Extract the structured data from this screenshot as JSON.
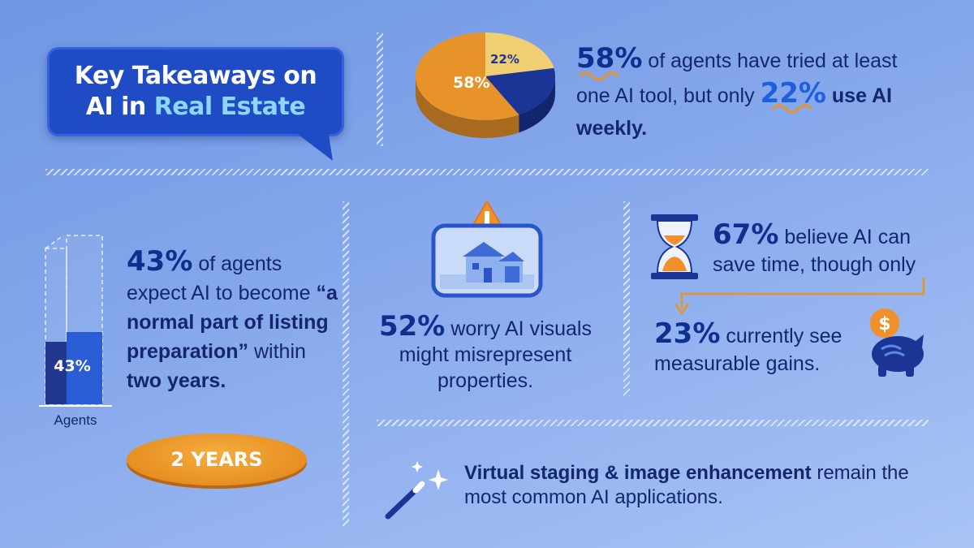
{
  "title": {
    "line1": "Key Takeaways on",
    "line2_prefix": "AI in",
    "line2_accent": "Real Estate"
  },
  "stat_tools": {
    "pct_tried": "58%",
    "text_a": "of agents have tried at least one AI tool, but only",
    "pct_weekly": "22%",
    "text_b": "use AI weekly."
  },
  "pie": {
    "label_large": "58%",
    "label_small": "22%"
  },
  "chart_data": {
    "type": "pie",
    "values": [
      58,
      22,
      20
    ],
    "labels": [
      "58%",
      "22%",
      ""
    ],
    "colors": [
      "#e8932a",
      "#f0cf73",
      "#1b3597"
    ]
  },
  "stat_normal": {
    "pct": "43%",
    "text_a": "of agents expect AI to become",
    "quote": "“a normal part of listing preparation”",
    "text_b": "within",
    "bold_end": "two years."
  },
  "bar": {
    "value_label": "43%",
    "axis_label": "Agents",
    "fill_fraction": 0.43
  },
  "badge": "2 YEARS",
  "stat_visuals": {
    "pct": "52%",
    "text": "worry AI visuals might misrepresent properties."
  },
  "stat_time": {
    "pct_believe": "67%",
    "text_a": "believe AI can save time, though only",
    "pct_gains": "23%",
    "text_b": "currently see measurable gains."
  },
  "stat_staging": {
    "bold": "Virtual staging & image enhancement",
    "text": "remain the most common AI applications."
  },
  "icons": {
    "warning": "warning-icon",
    "house": "house-icon",
    "hourglass": "hourglass-icon",
    "piggy_bank": "piggy-bank-icon",
    "magic_wand": "magic-wand-icon",
    "dollar": "$"
  },
  "colors": {
    "accent_orange": "#e8932a",
    "navy": "#1b3597",
    "title_bg": "#1f4bc4"
  }
}
